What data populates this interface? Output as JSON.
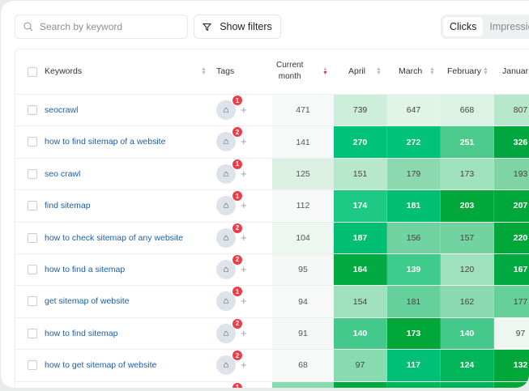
{
  "search": {
    "placeholder": "Search by keyword",
    "icon": "search-icon"
  },
  "filters": {
    "label": "Show filters",
    "icon": "filter-icon"
  },
  "view_toggle": {
    "options": [
      "Clicks",
      "Impressions"
    ],
    "selected": "Clicks",
    "visible_text": [
      "Clicks",
      "Impressio"
    ]
  },
  "columns": {
    "keywords": "Keywords",
    "tags": "Tags",
    "current_month": [
      "Current",
      "month"
    ],
    "months": [
      "April",
      "March",
      "February",
      "Januar"
    ]
  },
  "sort": {
    "column": "Current month",
    "direction": "descending",
    "active_color": "#e8323c"
  },
  "rows": [
    {
      "keyword": "seocrawl",
      "tag_count": "1",
      "current": "471",
      "current_color": "#f7f9f8",
      "values": [
        "739",
        "647",
        "668",
        "807"
      ],
      "colors": [
        "#cdeedb",
        "#e0f4e8",
        "#dcf2e5",
        "#b8e8cc"
      ]
    },
    {
      "keyword": "how to find sitemap of a website",
      "tag_count": "2",
      "current": "141",
      "current_color": "#f7f9f8",
      "values": [
        "270",
        "272",
        "251",
        "326"
      ],
      "colors": [
        "#00c278",
        "#00c278",
        "#4cca8c",
        "#00a63e"
      ]
    },
    {
      "keyword": "seo crawl",
      "tag_count": "1",
      "current": "125",
      "current_color": "#dcf1e4",
      "values": [
        "151",
        "179",
        "173",
        "193"
      ],
      "colors": [
        "#b8e8cc",
        "#8dd9af",
        "#a0e2be",
        "#7fd4a4"
      ]
    },
    {
      "keyword": "find sitemap",
      "tag_count": "1",
      "current": "112",
      "current_color": "#f7f9f8",
      "values": [
        "174",
        "181",
        "203",
        "207"
      ],
      "colors": [
        "#1ec985",
        "#00bf72",
        "#00a83a",
        "#00a83a"
      ]
    },
    {
      "keyword": "how to check sitemap of any website",
      "tag_count": "2",
      "current": "104",
      "current_color": "#edf7f0",
      "values": [
        "187",
        "156",
        "157",
        "220"
      ],
      "colors": [
        "#00bf72",
        "#70d3a0",
        "#70d3a0",
        "#00a83a"
      ]
    },
    {
      "keyword": "how to find a sitemap",
      "tag_count": "2",
      "current": "95",
      "current_color": "#f5f7f6",
      "values": [
        "164",
        "139",
        "120",
        "167"
      ],
      "colors": [
        "#00aa40",
        "#3ecb8b",
        "#9fe0bd",
        "#00aa40"
      ]
    },
    {
      "keyword": "get sitemap of website",
      "tag_count": "1",
      "current": "94",
      "current_color": "#f7f9f8",
      "values": [
        "154",
        "181",
        "162",
        "177"
      ],
      "colors": [
        "#9fe0bd",
        "#66d09b",
        "#8bd9ae",
        "#66d09b"
      ]
    },
    {
      "keyword": "how to find sitemap",
      "tag_count": "2",
      "current": "91",
      "current_color": "#f5f7f6",
      "values": [
        "140",
        "173",
        "140",
        "97"
      ],
      "colors": [
        "#44c98b",
        "#00a83a",
        "#44c98b",
        "#eef6f1"
      ]
    },
    {
      "keyword": "how to get sitemap of website",
      "tag_count": "2",
      "current": "68",
      "current_color": "#f7f9f8",
      "values": [
        "97",
        "117",
        "124",
        "132"
      ],
      "colors": [
        "#88dab0",
        "#00c078",
        "#00b55a",
        "#00a83a"
      ]
    },
    {
      "keyword": "",
      "tag_count": "1",
      "current": "",
      "current_color": "#88dab0",
      "values": [
        "",
        "",
        "",
        ""
      ],
      "colors": [
        "#00aa40",
        "#00b55a",
        "#00b55a",
        "#00a83a"
      ]
    }
  ]
}
